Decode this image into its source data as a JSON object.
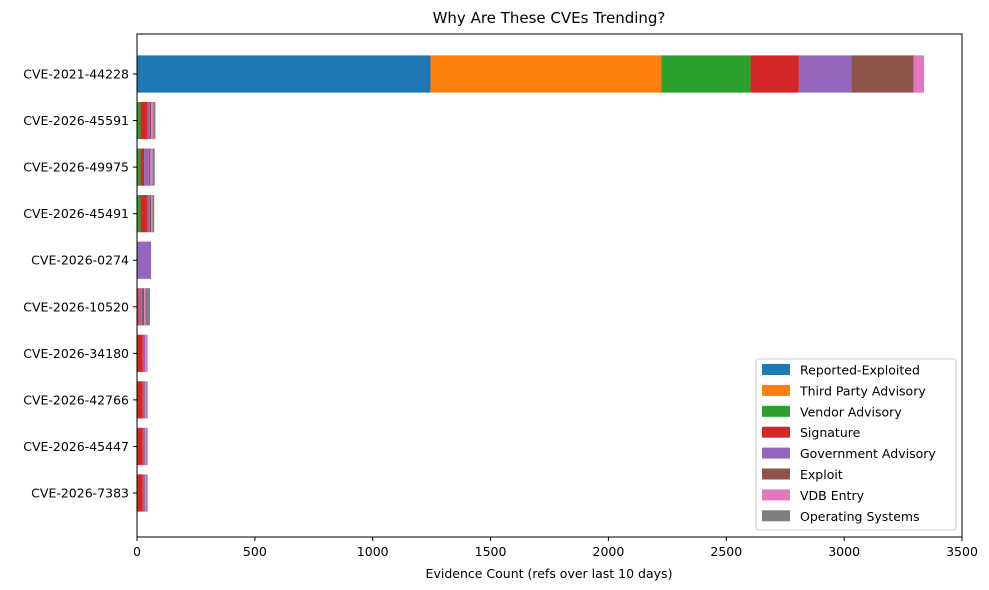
{
  "chart_data": {
    "type": "bar",
    "orientation": "horizontal",
    "stacked": true,
    "title": "Why Are These CVEs Trending?",
    "xlabel": "Evidence Count (refs over last 10 days)",
    "ylabel": "",
    "xlim": [
      0,
      3500
    ],
    "xticks": [
      0,
      500,
      1000,
      1500,
      2000,
      2500,
      3000,
      3500
    ],
    "grid": false,
    "legend_position": "lower-right",
    "categories": [
      "CVE-2021-44228",
      "CVE-2026-45591",
      "CVE-2026-49975",
      "CVE-2026-45491",
      "CVE-2026-0274",
      "CVE-2026-10520",
      "CVE-2026-34180",
      "CVE-2026-42766",
      "CVE-2026-45447",
      "CVE-2026-7383"
    ],
    "series": [
      {
        "name": "Reported-Exploited",
        "color": "#1f77b4",
        "values": [
          1245,
          0,
          0,
          0,
          0,
          0,
          0,
          0,
          0,
          0
        ]
      },
      {
        "name": "Third Party Advisory",
        "color": "#ff7f0e",
        "values": [
          980,
          0,
          0,
          0,
          0,
          0,
          0,
          0,
          0,
          0
        ]
      },
      {
        "name": "Vendor Advisory",
        "color": "#2ca02c",
        "values": [
          378,
          15,
          15,
          15,
          0,
          5,
          0,
          0,
          0,
          0
        ]
      },
      {
        "name": "Signature",
        "color": "#d62728",
        "values": [
          205,
          30,
          15,
          30,
          0,
          5,
          25,
          25,
          25,
          25
        ]
      },
      {
        "name": "Government Advisory",
        "color": "#9467bd",
        "values": [
          222,
          10,
          20,
          10,
          60,
          10,
          10,
          10,
          10,
          10
        ]
      },
      {
        "name": "Exploit",
        "color": "#8c564b",
        "values": [
          265,
          5,
          5,
          5,
          0,
          10,
          0,
          0,
          0,
          0
        ]
      },
      {
        "name": "VDB Entry",
        "color": "#e377c2",
        "values": [
          44,
          10,
          10,
          5,
          0,
          5,
          10,
          5,
          5,
          5
        ]
      },
      {
        "name": "Operating Systems",
        "color": "#7f7f7f",
        "values": [
          0,
          8,
          10,
          8,
          0,
          20,
          0,
          5,
          5,
          5
        ]
      }
    ]
  }
}
